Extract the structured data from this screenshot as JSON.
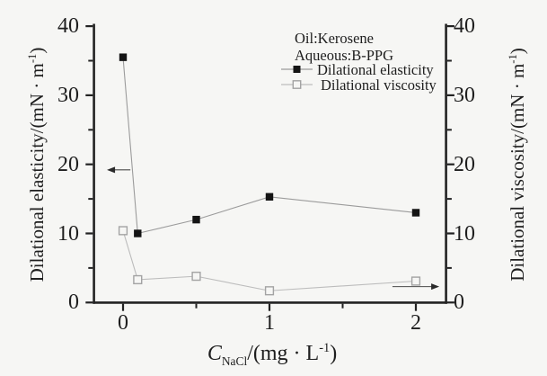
{
  "figure": {
    "background": "#f6f6f4",
    "text_color": "#1e1e1e",
    "axis_color": "#222222",
    "arrow_color": "#2a2a2a"
  },
  "chart_data": {
    "type": "line",
    "title": "",
    "x": [
      0,
      0.1,
      0.5,
      1,
      2
    ],
    "series": [
      {
        "name": "Dilational elasticity",
        "axis": "left",
        "marker": "filled-square",
        "marker_color": "#141414",
        "line_color": "#9b9b9b",
        "values": [
          35.5,
          10,
          12,
          15.3,
          13
        ]
      },
      {
        "name": "Dilational viscosity",
        "axis": "right",
        "marker": "open-square",
        "marker_color": "#a3a3a3",
        "line_color": "#bcbcbc",
        "values": [
          10.4,
          3.3,
          3.8,
          1.7,
          3.1
        ]
      }
    ],
    "axes": {
      "left": {
        "label": {
          "main": "Dilational elasticity/(mN · m",
          "sup": "-1",
          "close": ")"
        },
        "major_ticks": [
          0,
          10,
          20,
          30,
          40
        ],
        "minor_ticks": [
          5,
          15,
          25,
          35
        ],
        "range": [
          0,
          40.3
        ]
      },
      "right": {
        "label": {
          "main": "Dilational viscosity/(mN · m",
          "sup": "-1",
          "close": ")"
        },
        "major_ticks": [
          0,
          10,
          20,
          30,
          40
        ],
        "minor_ticks": [
          5,
          15,
          25,
          35
        ],
        "range": [
          0,
          40.3
        ]
      },
      "bottom": {
        "label": {
          "italic": "C",
          "sub": "NaCl",
          "mid": "/(mg · L",
          "sup": "-1",
          "close": ")"
        },
        "major_ticks": [
          0,
          1,
          2
        ],
        "minor_ticks": [
          0.5,
          1.5
        ],
        "range": [
          -0.2,
          2.2
        ]
      }
    },
    "annotations": [
      "Oil:Kerosene",
      "Aqueous:B-PPG"
    ],
    "legend": {
      "position": "top-center-inside",
      "entries": [
        "Dilational elasticity",
        "Dilational viscosity"
      ]
    },
    "axis_pointers": [
      {
        "target_axis": "left",
        "direction": "left",
        "y_value": 19.2,
        "x_from": 0.05,
        "x_to": -0.11
      },
      {
        "target_axis": "right",
        "direction": "right",
        "y_value": 2.3,
        "x_from": 1.84,
        "x_to": 2.16
      }
    ],
    "grid": false
  }
}
